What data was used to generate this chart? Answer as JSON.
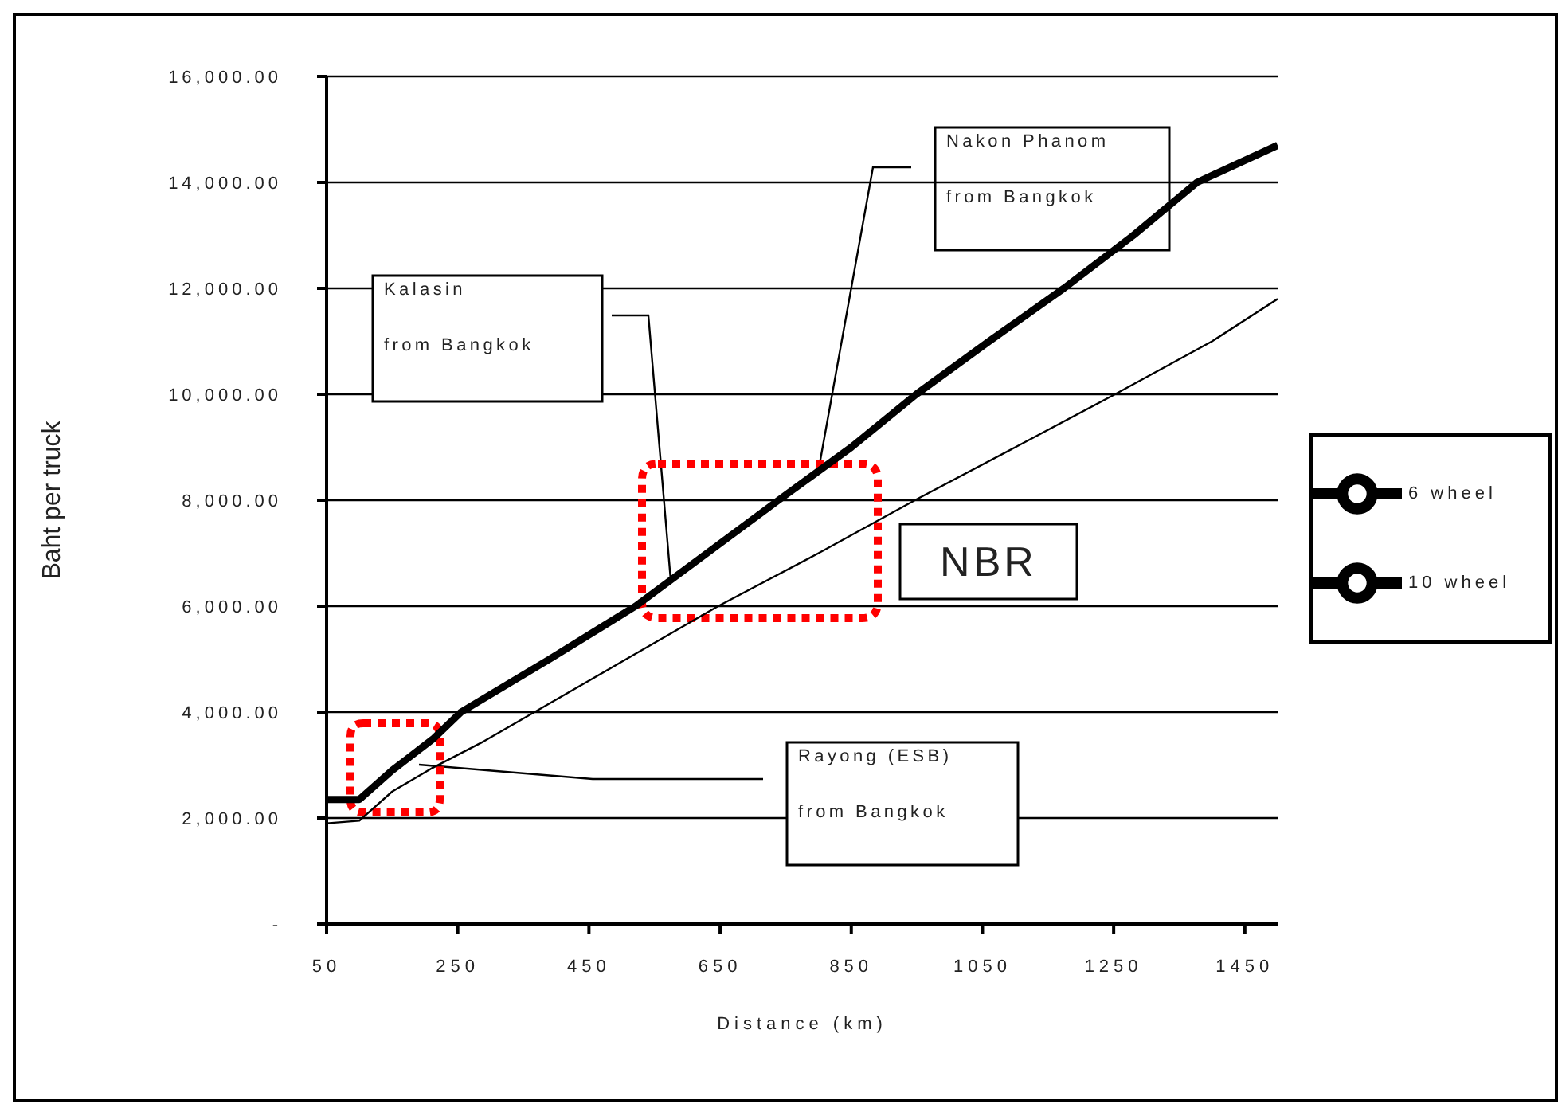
{
  "chart_data": {
    "type": "line",
    "xlabel": "Distance (km)",
    "ylabel": "Baht per truck",
    "xlim": [
      50,
      1500
    ],
    "xticks": [
      50,
      250,
      450,
      650,
      850,
      1050,
      1250,
      1450
    ],
    "ylim": [
      0,
      16000
    ],
    "yticks": [
      {
        "value": 0,
        "label": "-"
      },
      {
        "value": 2000,
        "label": "2,000.00"
      },
      {
        "value": 4000,
        "label": "4,000.00"
      },
      {
        "value": 6000,
        "label": "6,000.00"
      },
      {
        "value": 8000,
        "label": "8,000.00"
      },
      {
        "value": 10000,
        "label": "10,000.00"
      },
      {
        "value": 12000,
        "label": "12,000.00"
      },
      {
        "value": 14000,
        "label": "14,000.00"
      },
      {
        "value": 16000,
        "label": "16,000.00"
      }
    ],
    "grid": "y",
    "legend": "right",
    "marker": "none",
    "line_style": "solid",
    "series": [
      {
        "name": "6 wheel",
        "color": "#000000",
        "x": [
          50,
          100,
          150,
          212,
          290,
          367,
          500,
          647,
          800,
          947,
          1100,
          1252,
          1400,
          1500
        ],
        "values": [
          1900,
          1950,
          2500,
          2950,
          3450,
          4000,
          4950,
          6000,
          7000,
          8000,
          9000,
          10000,
          11000,
          11800
        ]
      },
      {
        "name": "10 wheel",
        "color": "#000000",
        "x": [
          50,
          100,
          150,
          212,
          255,
          390,
          521,
          630,
          739,
          850,
          949,
          1060,
          1174,
          1280,
          1377,
          1500
        ],
        "values": [
          2350,
          2350,
          2900,
          3490,
          4000,
          5000,
          6000,
          7000,
          8000,
          9000,
          10000,
          11000,
          12000,
          13000,
          14000,
          14700
        ]
      }
    ],
    "annotations": [
      "Nakon Phanom\nfrom Bangkok",
      "Kalasin\nfrom Bangkok",
      "NBR",
      "Rayong (ESB)\nfrom Bangkok"
    ]
  }
}
